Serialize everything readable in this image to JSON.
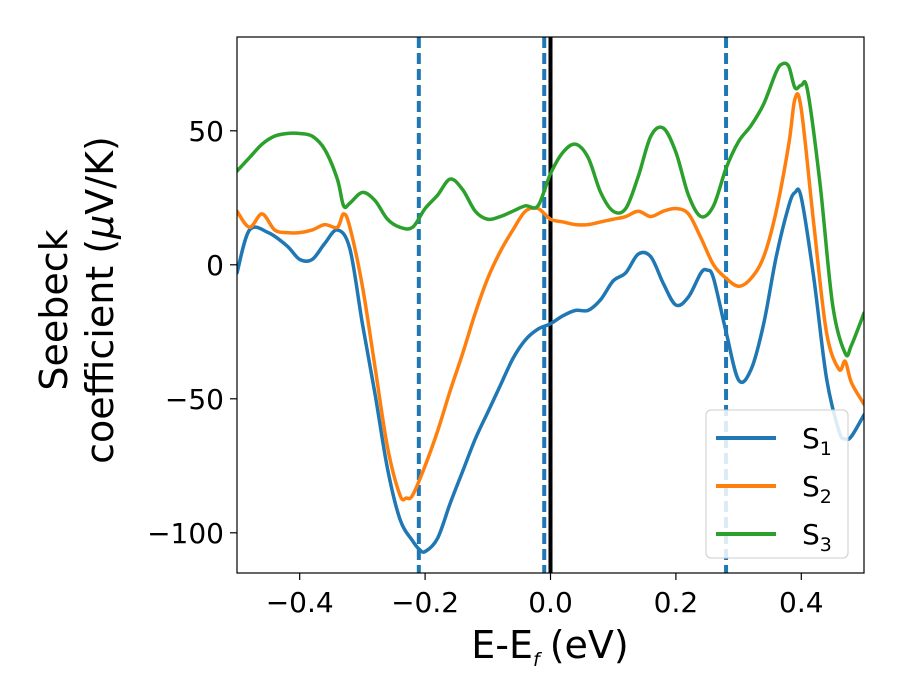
{
  "chart_data": {
    "type": "line",
    "xlabel": "E-E",
    "xlabel_sub": "f",
    "xlabel_unit": "(eV)",
    "ylabel_line1": "Seebeck",
    "ylabel_line2_prefix": "coefficient  (",
    "ylabel_mu": "μ",
    "ylabel_line2_suffix": "V/K)",
    "xlim": [
      -0.5,
      0.5
    ],
    "ylim": [
      -115,
      85
    ],
    "xticks": [
      -0.4,
      -0.2,
      0.0,
      0.2,
      0.4
    ],
    "xtick_labels": [
      "−0.4",
      "−0.2",
      "0.0",
      "0.2",
      "0.4"
    ],
    "yticks": [
      -100,
      -50,
      0,
      50
    ],
    "ytick_labels": [
      "−100",
      "−50",
      "0",
      "50"
    ],
    "grid": false,
    "legend_placement": "lower-right",
    "vertical_lines": [
      {
        "x": -0.21,
        "style": "dashed",
        "color": "#1f77b4"
      },
      {
        "x": -0.01,
        "style": "dashed",
        "color": "#1f77b4"
      },
      {
        "x": 0.0,
        "style": "solid",
        "color": "#000000"
      },
      {
        "x": 0.28,
        "style": "dashed",
        "color": "#1f77b4"
      }
    ],
    "series": [
      {
        "name": "S",
        "sub": "1",
        "color": "#1f77b4",
        "points": [
          [
            -0.5,
            -3
          ],
          [
            -0.48,
            13
          ],
          [
            -0.45,
            12
          ],
          [
            -0.42,
            7
          ],
          [
            -0.4,
            2
          ],
          [
            -0.38,
            2
          ],
          [
            -0.36,
            8
          ],
          [
            -0.34,
            13
          ],
          [
            -0.32,
            6
          ],
          [
            -0.3,
            -22
          ],
          [
            -0.28,
            -48
          ],
          [
            -0.26,
            -76
          ],
          [
            -0.24,
            -95
          ],
          [
            -0.22,
            -103
          ],
          [
            -0.21,
            -106
          ],
          [
            -0.2,
            -107
          ],
          [
            -0.18,
            -102
          ],
          [
            -0.16,
            -89
          ],
          [
            -0.14,
            -77
          ],
          [
            -0.12,
            -65
          ],
          [
            -0.1,
            -55
          ],
          [
            -0.08,
            -45
          ],
          [
            -0.06,
            -35
          ],
          [
            -0.04,
            -28
          ],
          [
            -0.02,
            -24
          ],
          [
            0.0,
            -22
          ],
          [
            0.02,
            -19
          ],
          [
            0.04,
            -17
          ],
          [
            0.06,
            -17
          ],
          [
            0.08,
            -13
          ],
          [
            0.1,
            -6
          ],
          [
            0.12,
            -3
          ],
          [
            0.14,
            4
          ],
          [
            0.16,
            3
          ],
          [
            0.18,
            -7
          ],
          [
            0.2,
            -15
          ],
          [
            0.22,
            -12
          ],
          [
            0.24,
            -3
          ],
          [
            0.25,
            -2
          ],
          [
            0.26,
            -5
          ],
          [
            0.28,
            -25
          ],
          [
            0.3,
            -43
          ],
          [
            0.32,
            -39
          ],
          [
            0.34,
            -22
          ],
          [
            0.36,
            3
          ],
          [
            0.38,
            22
          ],
          [
            0.39,
            27
          ],
          [
            0.4,
            25
          ],
          [
            0.42,
            -5
          ],
          [
            0.44,
            -42
          ],
          [
            0.46,
            -62
          ],
          [
            0.47,
            -65
          ],
          [
            0.48,
            -64
          ],
          [
            0.5,
            -56
          ]
        ]
      },
      {
        "name": "S",
        "sub": "2",
        "color": "#ff7f0e",
        "points": [
          [
            -0.5,
            20
          ],
          [
            -0.48,
            14
          ],
          [
            -0.46,
            19
          ],
          [
            -0.44,
            13
          ],
          [
            -0.42,
            12
          ],
          [
            -0.4,
            12
          ],
          [
            -0.38,
            13
          ],
          [
            -0.36,
            15
          ],
          [
            -0.34,
            14
          ],
          [
            -0.33,
            19
          ],
          [
            -0.32,
            14
          ],
          [
            -0.3,
            -8
          ],
          [
            -0.28,
            -38
          ],
          [
            -0.26,
            -68
          ],
          [
            -0.24,
            -86
          ],
          [
            -0.23,
            -87
          ],
          [
            -0.22,
            -86
          ],
          [
            -0.2,
            -75
          ],
          [
            -0.18,
            -62
          ],
          [
            -0.16,
            -47
          ],
          [
            -0.14,
            -33
          ],
          [
            -0.12,
            -18
          ],
          [
            -0.1,
            -5
          ],
          [
            -0.08,
            5
          ],
          [
            -0.06,
            13
          ],
          [
            -0.04,
            20
          ],
          [
            -0.02,
            21
          ],
          [
            0.0,
            17
          ],
          [
            0.02,
            16
          ],
          [
            0.04,
            15
          ],
          [
            0.06,
            15
          ],
          [
            0.08,
            16
          ],
          [
            0.1,
            17
          ],
          [
            0.12,
            18
          ],
          [
            0.14,
            20
          ],
          [
            0.16,
            18
          ],
          [
            0.18,
            20
          ],
          [
            0.2,
            21
          ],
          [
            0.22,
            19
          ],
          [
            0.24,
            10
          ],
          [
            0.26,
            0
          ],
          [
            0.28,
            -5
          ],
          [
            0.3,
            -8
          ],
          [
            0.32,
            -5
          ],
          [
            0.34,
            3
          ],
          [
            0.36,
            20
          ],
          [
            0.38,
            45
          ],
          [
            0.39,
            62
          ],
          [
            0.4,
            58
          ],
          [
            0.42,
            15
          ],
          [
            0.44,
            -25
          ],
          [
            0.46,
            -39
          ],
          [
            0.47,
            -36
          ],
          [
            0.48,
            -44
          ],
          [
            0.5,
            -52
          ]
        ]
      },
      {
        "name": "S",
        "sub": "3",
        "color": "#2ca02c",
        "points": [
          [
            -0.5,
            35
          ],
          [
            -0.48,
            40
          ],
          [
            -0.46,
            45
          ],
          [
            -0.44,
            48
          ],
          [
            -0.42,
            49
          ],
          [
            -0.4,
            49
          ],
          [
            -0.38,
            48
          ],
          [
            -0.36,
            43
          ],
          [
            -0.34,
            32
          ],
          [
            -0.33,
            22
          ],
          [
            -0.32,
            23
          ],
          [
            -0.3,
            27
          ],
          [
            -0.28,
            24
          ],
          [
            -0.26,
            17
          ],
          [
            -0.24,
            14
          ],
          [
            -0.22,
            14
          ],
          [
            -0.2,
            21
          ],
          [
            -0.18,
            26
          ],
          [
            -0.16,
            32
          ],
          [
            -0.14,
            28
          ],
          [
            -0.12,
            20
          ],
          [
            -0.1,
            17
          ],
          [
            -0.08,
            18
          ],
          [
            -0.06,
            20
          ],
          [
            -0.04,
            22
          ],
          [
            -0.02,
            22
          ],
          [
            0.0,
            34
          ],
          [
            0.02,
            42
          ],
          [
            0.04,
            45
          ],
          [
            0.06,
            40
          ],
          [
            0.08,
            27
          ],
          [
            0.1,
            20
          ],
          [
            0.12,
            21
          ],
          [
            0.14,
            33
          ],
          [
            0.16,
            48
          ],
          [
            0.18,
            51
          ],
          [
            0.2,
            42
          ],
          [
            0.22,
            26
          ],
          [
            0.24,
            18
          ],
          [
            0.26,
            22
          ],
          [
            0.28,
            36
          ],
          [
            0.3,
            46
          ],
          [
            0.32,
            52
          ],
          [
            0.34,
            60
          ],
          [
            0.36,
            72
          ],
          [
            0.37,
            75
          ],
          [
            0.38,
            74
          ],
          [
            0.39,
            66
          ],
          [
            0.4,
            67
          ],
          [
            0.41,
            65
          ],
          [
            0.43,
            30
          ],
          [
            0.45,
            -15
          ],
          [
            0.47,
            -33
          ],
          [
            0.48,
            -30
          ],
          [
            0.5,
            -18
          ]
        ]
      }
    ]
  }
}
